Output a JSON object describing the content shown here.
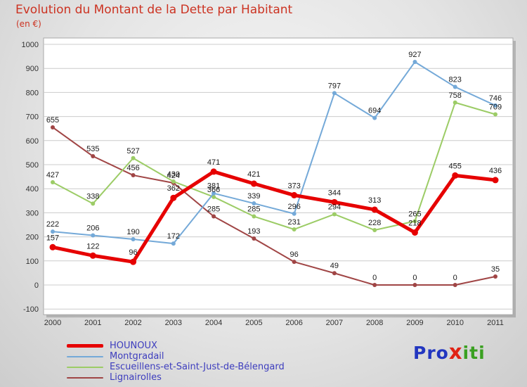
{
  "page": {
    "title": "Evolution du Montant de la Dette par Habitant",
    "subtitle": "(en €)"
  },
  "chart_data": {
    "type": "line",
    "title": "Evolution du Montant de la Dette par Habitant",
    "unit_label": "(en €)",
    "x": [
      2000,
      2001,
      2002,
      2003,
      2004,
      2005,
      2006,
      2007,
      2008,
      2009,
      2010,
      2011
    ],
    "ylim": [
      -100,
      1000
    ],
    "ytick_step": 100,
    "grid": true,
    "legend_position": "bottom-left",
    "point_label_color": "#1a1a1a",
    "axis_label_color": "#333333",
    "gridline_color": "#cccccc",
    "plot_background": "#ffffff",
    "series": [
      {
        "name": "HOUNOUX",
        "color": "#e60000",
        "line_width": 5,
        "values": [
          157,
          122,
          96,
          362,
          471,
          421,
          373,
          344,
          313,
          218,
          455,
          436
        ]
      },
      {
        "name": "Montgradail",
        "color": "#74a9d8",
        "line_width": 2,
        "values": [
          222,
          206,
          190,
          172,
          381,
          339,
          296,
          797,
          694,
          927,
          823,
          746
        ]
      },
      {
        "name": "Escueillens-et-Saint-Just-de-Bélengard",
        "color": "#9ccc66",
        "line_width": 2,
        "values": [
          427,
          338,
          527,
          430,
          366,
          285,
          231,
          294,
          228,
          265,
          758,
          709
        ]
      },
      {
        "name": "Lignairolles",
        "color": "#a04545",
        "line_width": 2,
        "values": [
          655,
          535,
          456,
          424,
          285,
          193,
          96,
          49,
          0,
          0,
          0,
          35
        ]
      }
    ]
  },
  "logo": {
    "part1": "Pro",
    "part2": "x",
    "part3": "iti"
  }
}
